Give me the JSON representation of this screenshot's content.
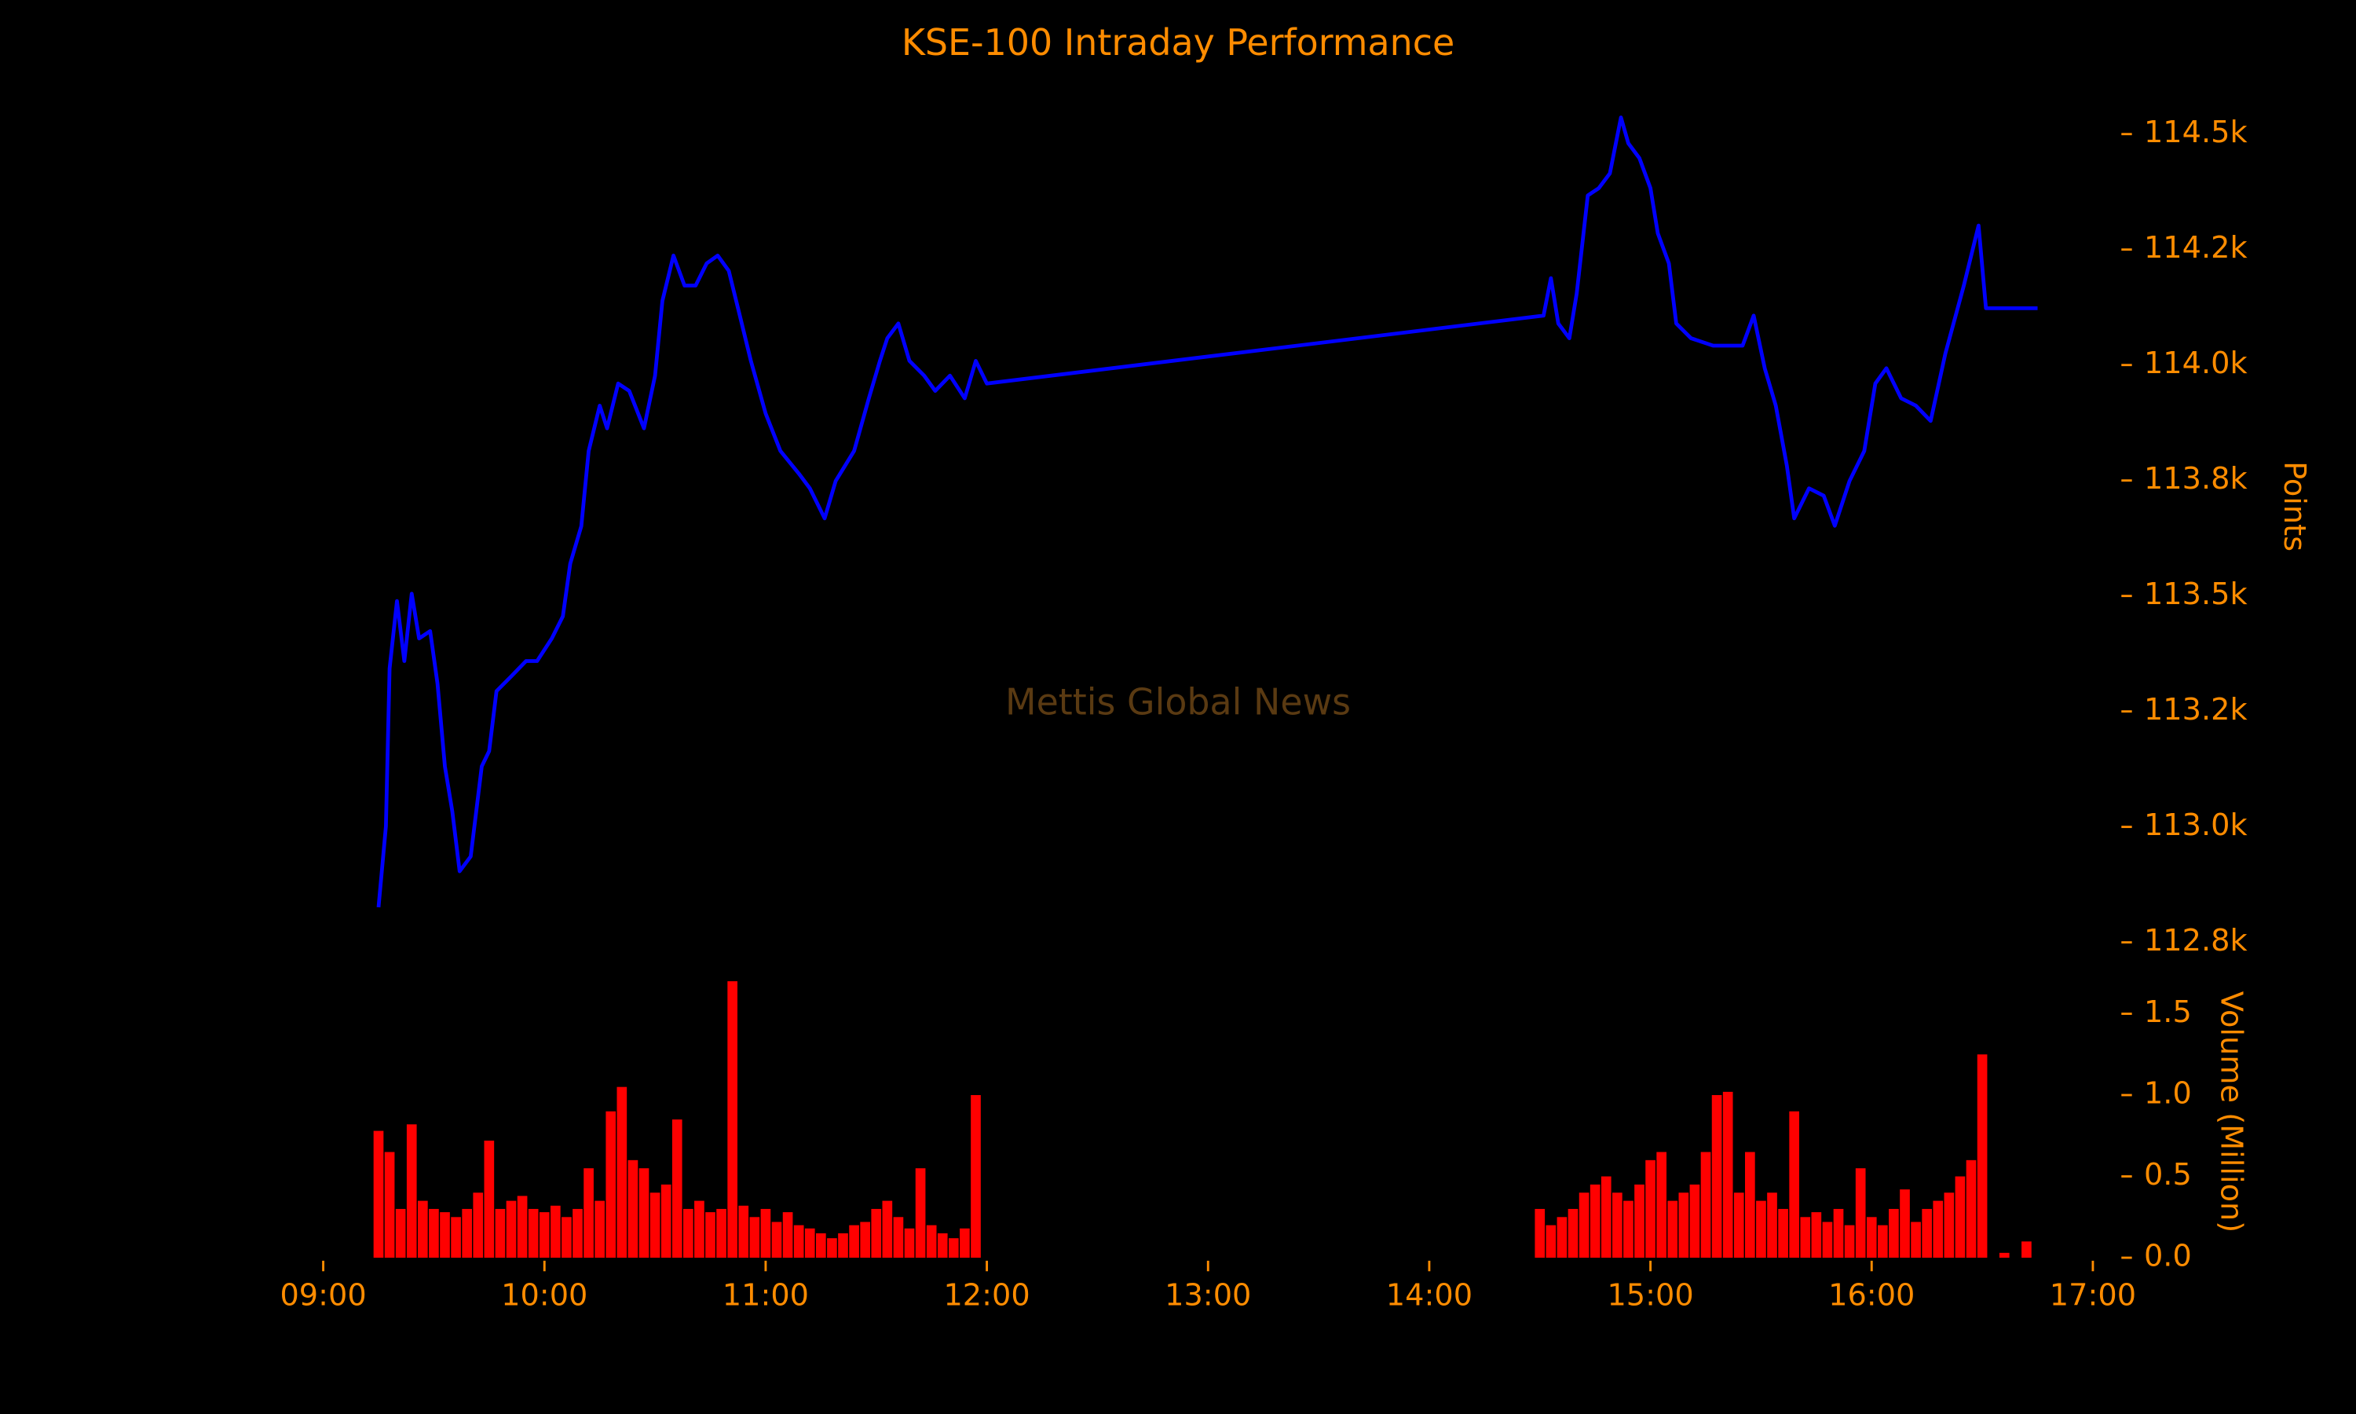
{
  "chart_data": [
    {
      "type": "line",
      "title": "KSE-100 Intraday Performance",
      "ylabel": "Points",
      "annotation": "Mettis Global News",
      "annotation_color": "#5a3a12",
      "color": "#0000ff",
      "x": [
        555,
        557,
        558,
        560,
        562,
        564,
        566,
        569,
        571,
        573,
        575,
        577,
        580,
        583,
        585,
        587,
        591,
        595,
        598,
        602,
        605,
        607,
        610,
        612,
        615,
        617,
        620,
        623,
        627,
        630,
        632,
        635,
        638,
        641,
        644,
        647,
        650,
        653,
        656,
        660,
        664,
        669,
        672,
        676,
        679,
        684,
        688,
        691,
        693,
        696,
        699,
        703,
        706,
        710,
        714,
        717,
        720,
        871,
        873,
        875,
        878,
        880,
        883,
        886,
        889,
        892,
        894,
        897,
        900,
        902,
        905,
        907,
        911,
        917,
        921,
        925,
        928,
        931,
        934,
        937,
        939,
        943,
        947,
        950,
        954,
        958,
        961,
        964,
        968,
        972,
        976,
        980,
        985,
        989,
        991,
        1005
      ],
      "values": [
        112826,
        113001,
        113343,
        113489,
        113359,
        113505,
        113408,
        113424,
        113310,
        113131,
        113034,
        112904,
        112936,
        113131,
        113164,
        113294,
        113326,
        113359,
        113359,
        113408,
        113456,
        113570,
        113651,
        113814,
        113912,
        113863,
        113960,
        113944,
        113863,
        113977,
        114139,
        114237,
        114172,
        114172,
        114220,
        114237,
        114204,
        114107,
        114009,
        113895,
        113814,
        113765,
        113733,
        113668,
        113749,
        113814,
        113928,
        114009,
        114058,
        114090,
        114009,
        113977,
        113944,
        113977,
        113928,
        114009,
        113960,
        114107,
        114188,
        114090,
        114058,
        114155,
        114367,
        114383,
        114415,
        114536,
        114480,
        114448,
        114383,
        114285,
        114220,
        114090,
        114058,
        114042,
        114042,
        114042,
        114107,
        113993,
        113912,
        113782,
        113668,
        113733,
        113717,
        113652,
        113749,
        113814,
        113960,
        113993,
        113928,
        113912,
        113879,
        114025,
        114172,
        114302,
        114123,
        114123
      ],
      "xlim": [
        540,
        1020
      ],
      "ylim": [
        112700,
        114600
      ],
      "yticks": [
        {
          "value": 112750,
          "label": "112.8k"
        },
        {
          "value": 113000,
          "label": "113.0k"
        },
        {
          "value": 113250,
          "label": "113.2k"
        },
        {
          "value": 113500,
          "label": "113.5k"
        },
        {
          "value": 113750,
          "label": "113.8k"
        },
        {
          "value": 114000,
          "label": "114.0k"
        },
        {
          "value": 114250,
          "label": "114.2k"
        },
        {
          "value": 114500,
          "label": "114.5k"
        }
      ]
    },
    {
      "type": "bar",
      "ylabel": "Volume (Million)",
      "color": "#ff0000",
      "x": [
        555,
        558,
        561,
        564,
        567,
        570,
        573,
        576,
        579,
        582,
        585,
        588,
        591,
        594,
        597,
        600,
        603,
        606,
        609,
        612,
        615,
        618,
        621,
        624,
        627,
        630,
        633,
        636,
        639,
        642,
        645,
        648,
        651,
        654,
        657,
        660,
        663,
        666,
        669,
        672,
        675,
        678,
        681,
        684,
        687,
        690,
        693,
        696,
        699,
        702,
        705,
        708,
        711,
        714,
        717,
        870,
        873,
        876,
        879,
        882,
        885,
        888,
        891,
        894,
        897,
        900,
        903,
        906,
        909,
        912,
        915,
        918,
        921,
        924,
        927,
        930,
        933,
        936,
        939,
        942,
        945,
        948,
        951,
        954,
        957,
        960,
        963,
        966,
        969,
        972,
        975,
        978,
        981,
        984,
        987,
        990,
        996,
        1002
      ],
      "values": [
        0.78,
        0.65,
        0.3,
        0.82,
        0.35,
        0.3,
        0.28,
        0.25,
        0.3,
        0.4,
        0.72,
        0.3,
        0.35,
        0.38,
        0.3,
        0.28,
        0.32,
        0.25,
        0.3,
        0.55,
        0.35,
        0.9,
        1.05,
        0.6,
        0.55,
        0.4,
        0.45,
        0.85,
        0.3,
        0.35,
        0.28,
        0.3,
        1.7,
        0.32,
        0.25,
        0.3,
        0.22,
        0.28,
        0.2,
        0.18,
        0.15,
        0.12,
        0.15,
        0.2,
        0.22,
        0.3,
        0.35,
        0.25,
        0.18,
        0.55,
        0.2,
        0.15,
        0.12,
        0.18,
        1.0,
        0.3,
        0.2,
        0.25,
        0.3,
        0.4,
        0.45,
        0.5,
        0.4,
        0.35,
        0.45,
        0.6,
        0.65,
        0.35,
        0.4,
        0.45,
        0.65,
        1.0,
        1.02,
        0.4,
        0.65,
        0.35,
        0.4,
        0.3,
        0.9,
        0.25,
        0.28,
        0.22,
        0.3,
        0.2,
        0.55,
        0.25,
        0.2,
        0.3,
        0.42,
        0.22,
        0.3,
        0.35,
        0.4,
        0.5,
        0.6,
        1.25,
        0.03,
        0.1
      ],
      "xlim": [
        540,
        1020
      ],
      "ylim": [
        0,
        1.7
      ],
      "yticks": [
        {
          "value": 0,
          "label": "0.0"
        },
        0.5,
        {
          "value": 1,
          "label": "1.0"
        },
        1.5
      ],
      "xticks": [
        {
          "value": 540,
          "label": "09:00"
        },
        {
          "value": 600,
          "label": "10:00"
        },
        {
          "value": 660,
          "label": "11:00"
        },
        {
          "value": 720,
          "label": "12:00"
        },
        {
          "value": 780,
          "label": "13:00"
        },
        {
          "value": 840,
          "label": "14:00"
        },
        {
          "value": 900,
          "label": "15:00"
        },
        {
          "value": 960,
          "label": "16:00"
        },
        {
          "value": 1020,
          "label": "17:00"
        }
      ]
    }
  ]
}
